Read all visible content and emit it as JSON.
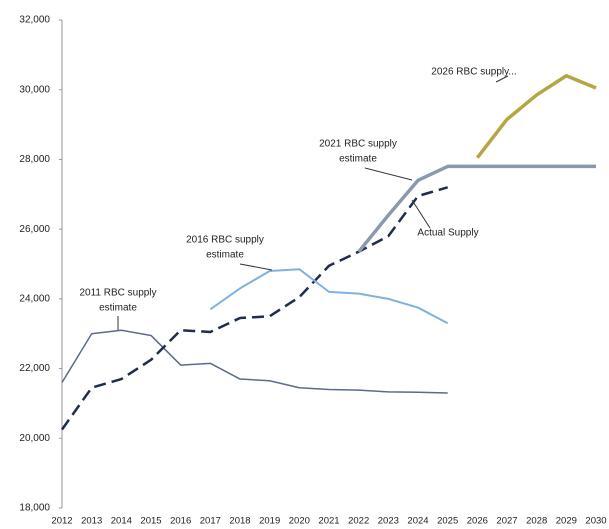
{
  "chart_data": {
    "type": "line",
    "x": [
      2012,
      2013,
      2014,
      2015,
      2016,
      2017,
      2018,
      2019,
      2020,
      2021,
      2022,
      2023,
      2024,
      2025,
      2026,
      2027,
      2028,
      2029,
      2030
    ],
    "xlim": [
      2012,
      2030
    ],
    "xticks": [
      2012,
      2013,
      2014,
      2015,
      2016,
      2017,
      2018,
      2019,
      2020,
      2021,
      2022,
      2023,
      2024,
      2025,
      2026,
      2027,
      2028,
      2029,
      2030
    ],
    "ylim": [
      18000,
      32000
    ],
    "yticks": [
      {
        "value": 18000,
        "label": "18,000"
      },
      {
        "value": 20000,
        "label": "20,000"
      },
      {
        "value": 22000,
        "label": "22,000"
      },
      {
        "value": 24000,
        "label": "24,000"
      },
      {
        "value": 26000,
        "label": "26,000"
      },
      {
        "value": 28000,
        "label": "28,000"
      },
      {
        "value": 30000,
        "label": "30,000"
      },
      {
        "value": 32000,
        "label": "32,000"
      }
    ],
    "grid": false,
    "series": [
      {
        "name": "2011 RBC supply estimate",
        "color": "#5a6b8c",
        "width": 1.5,
        "dashed": false,
        "values": [
          21600,
          23000,
          23100,
          22950,
          22100,
          22150,
          21700,
          21650,
          21450,
          21400,
          21380,
          21330,
          21320,
          21300,
          null,
          null,
          null,
          null,
          null
        ]
      },
      {
        "name": "Actual Supply",
        "color": "#1f2d4d",
        "width": 2.5,
        "dashed": true,
        "values": [
          20250,
          21450,
          21700,
          22250,
          23100,
          23050,
          23450,
          23500,
          24050,
          24950,
          25350,
          25800,
          26950,
          27200,
          null,
          null,
          null,
          null,
          null
        ]
      },
      {
        "name": "2016 RBC supply estimate",
        "color": "#7fb2de",
        "width": 2,
        "dashed": false,
        "values": [
          null,
          null,
          null,
          null,
          null,
          23700,
          24300,
          24800,
          24850,
          24200,
          24150,
          24000,
          23750,
          23300,
          null,
          null,
          null,
          null,
          null
        ]
      },
      {
        "name": "2021 RBC supply estimate",
        "color": "#8a9aad",
        "width": 3.5,
        "dashed": false,
        "values": [
          null,
          null,
          null,
          null,
          null,
          null,
          null,
          null,
          null,
          null,
          25350,
          26400,
          27400,
          27800,
          27800,
          27800,
          27800,
          27800,
          27800
        ]
      },
      {
        "name": "2026 RBC supply...",
        "color": "#b5a642",
        "width": 3.5,
        "dashed": false,
        "values": [
          null,
          null,
          null,
          null,
          null,
          null,
          null,
          null,
          null,
          null,
          null,
          null,
          null,
          null,
          28050,
          29150,
          29850,
          30400,
          30050
        ]
      }
    ],
    "annotations": [
      {
        "lines": [
          "2011 RBC supply",
          "estimate"
        ]
      },
      {
        "lines": [
          "Actual Supply"
        ]
      },
      {
        "lines": [
          "2016 RBC supply",
          "estimate"
        ]
      },
      {
        "lines": [
          "2021 RBC supply",
          "estimate"
        ]
      },
      {
        "lines": [
          "2026 RBC supply..."
        ]
      }
    ]
  }
}
